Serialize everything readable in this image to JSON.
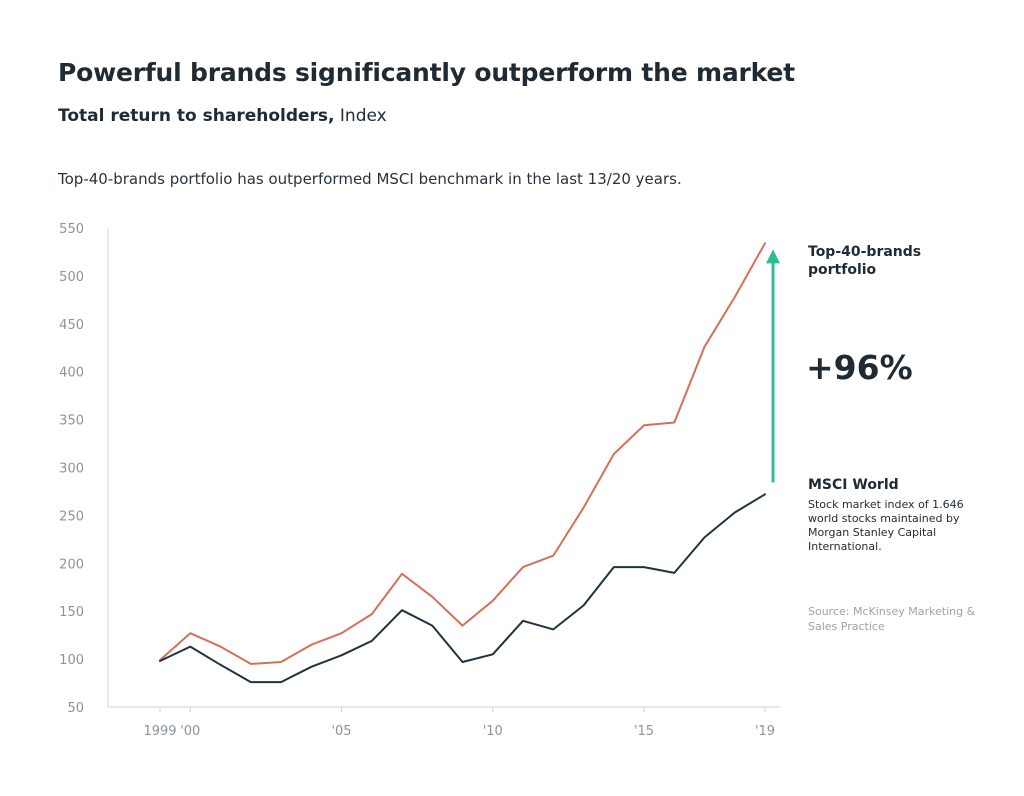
{
  "title": "Powerful brands significantly outperform the market",
  "subtitle_bold": "Total return to shareholders,",
  "subtitle_normal": " Index",
  "description": "Top-40-brands portfolio has outperformed MSCI benchmark in the last 13/20 years.",
  "annotations": {
    "top40_label": "Top-40-brands portfolio",
    "difference": "+96%",
    "msci_label": "MSCI World",
    "msci_description": "Stock market index of 1.646 world stocks maintained by Morgan Stanley Capital International.",
    "source": "Source: McKinsey Marketing & Sales Practice"
  },
  "colors": {
    "top40": "#d4705a",
    "msci": "#1e3340",
    "arrow": "#2dbd97",
    "axis": "#d0d4d8",
    "text": "#1f2a33",
    "muted": "#8c949b"
  },
  "chart_data": {
    "type": "line",
    "x": [
      1999,
      2000,
      2001,
      2002,
      2003,
      2004,
      2005,
      2006,
      2007,
      2008,
      2009,
      2010,
      2011,
      2012,
      2013,
      2014,
      2015,
      2016,
      2017,
      2018,
      2019
    ],
    "series": [
      {
        "name": "Top-40-brands portfolio",
        "values": [
          99,
          127,
          113,
          95,
          97,
          115,
          127,
          147,
          189,
          165,
          135,
          161,
          196,
          208,
          258,
          314,
          344,
          347,
          426,
          478,
          534
        ]
      },
      {
        "name": "MSCI World",
        "values": [
          98,
          113,
          94,
          76,
          76,
          92,
          104,
          119,
          151,
          135,
          97,
          105,
          140,
          131,
          156,
          196,
          196,
          190,
          227,
          253,
          272
        ]
      }
    ],
    "ylim": [
      50,
      550
    ],
    "yticks": [
      50,
      100,
      150,
      200,
      250,
      300,
      350,
      400,
      450,
      500,
      550
    ],
    "xticks": [
      {
        "value": 1999,
        "label": "1999"
      },
      {
        "value": 2000,
        "label": "'00"
      },
      {
        "value": 2005,
        "label": "'05"
      },
      {
        "value": 2010,
        "label": "'10"
      },
      {
        "value": 2015,
        "label": "'15"
      },
      {
        "value": 2019,
        "label": "'19"
      }
    ],
    "grid": false
  }
}
